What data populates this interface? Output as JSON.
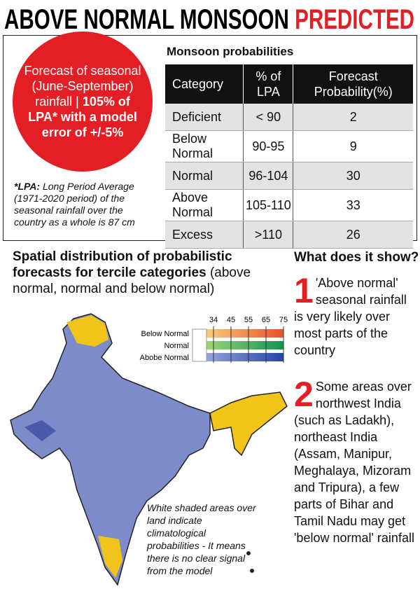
{
  "header": {
    "title": "ABOVE NORMAL MONSOON",
    "highlight": "PREDICTED"
  },
  "forecast": {
    "text": "Forecast of seasonal (June-September) rainfall |",
    "emphasis": "105% of LPA* with a model error of +/-5%"
  },
  "footnote": {
    "term": "*LPA:",
    "text": "Long Period Average (1971-2020 period) of the seasonal rainfall over the country as a whole is 87 cm"
  },
  "table": {
    "title": "Monsoon probabilities",
    "columns": [
      "Category",
      "% of LPA",
      "Forecast Probability(%)"
    ],
    "rows": [
      [
        "Deficient",
        "< 90",
        2
      ],
      [
        "Below Normal",
        "90-95",
        9
      ],
      [
        "Normal",
        "96-104",
        30
      ],
      [
        "Above Normal",
        "105-110",
        33
      ],
      [
        "Excess",
        ">110",
        26
      ]
    ]
  },
  "map": {
    "title": "Spatial distribution of probabilistic forecasts for tercile categories",
    "subtitle": "(above normal, normal and below normal)",
    "legend": {
      "ticks": [
        34,
        45,
        55,
        65,
        75
      ],
      "categories": [
        "Below Normal",
        "Normal",
        "Abobe Normal"
      ]
    },
    "note": "White shaded areas over land indicate climatological probabilities - It means there is no clear signal from the model"
  },
  "explainer": {
    "title": "What does it show?",
    "points": [
      {
        "number": 1,
        "text": "'Above normal' seasonal rainfall is very likely over most parts of the country"
      },
      {
        "number": 2,
        "text": "Some areas over northwest India (such as Ladakh), northeast India (Assam, Manipur, Meghalaya, Mizoram and Tripura), a few parts of Bihar and Tamil Nadu may get 'below normal' rainfall"
      }
    ]
  }
}
